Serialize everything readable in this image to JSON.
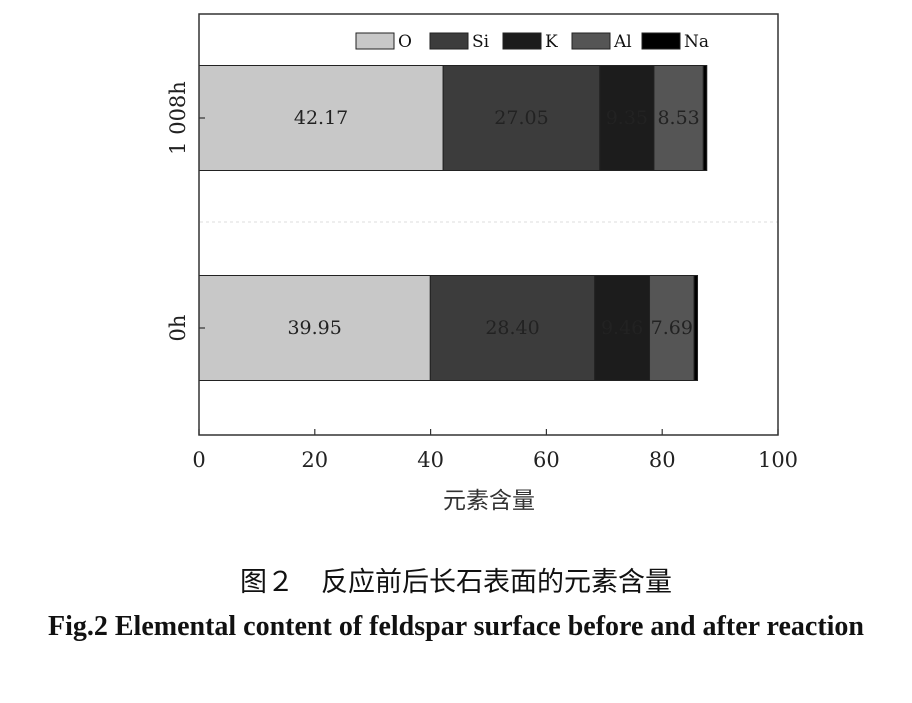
{
  "chart_data": {
    "type": "bar",
    "orientation": "horizontal",
    "stacked": true,
    "categories": [
      "1 008h",
      "0h"
    ],
    "series": [
      {
        "name": "O",
        "values": [
          42.17,
          39.95
        ],
        "labels": [
          "42.17",
          "39.95"
        ],
        "color": "#c8c8c8"
      },
      {
        "name": "Si",
        "values": [
          27.05,
          28.4
        ],
        "labels": [
          "27.05",
          "28.40"
        ],
        "color": "#3c3c3c"
      },
      {
        "name": "K",
        "values": [
          9.35,
          9.46
        ],
        "labels": [
          "9.35",
          "9.46"
        ],
        "color": "#1c1c1c"
      },
      {
        "name": "Al",
        "values": [
          8.53,
          7.69
        ],
        "labels": [
          "8.53",
          "7.69"
        ],
        "color": "#555555"
      },
      {
        "name": "Na",
        "values": [
          0.6,
          0.6
        ],
        "labels": [
          "",
          ""
        ],
        "color": "#000000"
      }
    ],
    "xlabel": "元素含量",
    "ylabel": "",
    "xlim": [
      0,
      100
    ],
    "xticks": [
      0,
      20,
      40,
      60,
      80,
      100
    ],
    "legend_position": "top",
    "grid": false
  },
  "caption": {
    "cn": "图２　反应前后长石表面的元素含量",
    "en": "Fig.2 Elemental content of feldspar surface before and after reaction"
  }
}
